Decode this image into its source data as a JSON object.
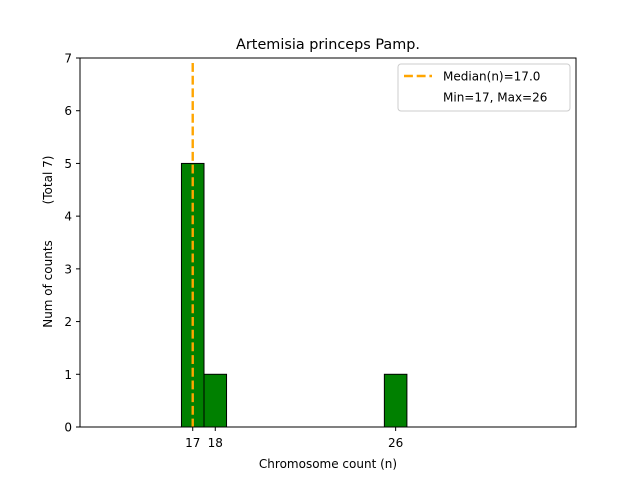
{
  "chart_data": {
    "type": "bar",
    "title": "Artemisia princeps Pamp.",
    "xlabel": "Chromosome count (n)",
    "ylabel": "Num of counts",
    "ylabel_total": "(Total 7)",
    "x_ticks": [
      17,
      18,
      26
    ],
    "y_ticks": [
      0,
      1,
      2,
      3,
      4,
      5,
      6,
      7
    ],
    "xlim": [
      12,
      34
    ],
    "ylim": [
      0,
      7
    ],
    "bars": [
      {
        "x": 17,
        "value": 5
      },
      {
        "x": 18,
        "value": 1
      },
      {
        "x": 26,
        "value": 1
      }
    ],
    "median": 17.0,
    "legend": {
      "placement": "top-right",
      "entries": [
        "Median(n)=17.0",
        "Min=17, Max=26"
      ]
    },
    "colors": {
      "bar": "#008000",
      "median": "#FFA500"
    },
    "grid": false
  }
}
